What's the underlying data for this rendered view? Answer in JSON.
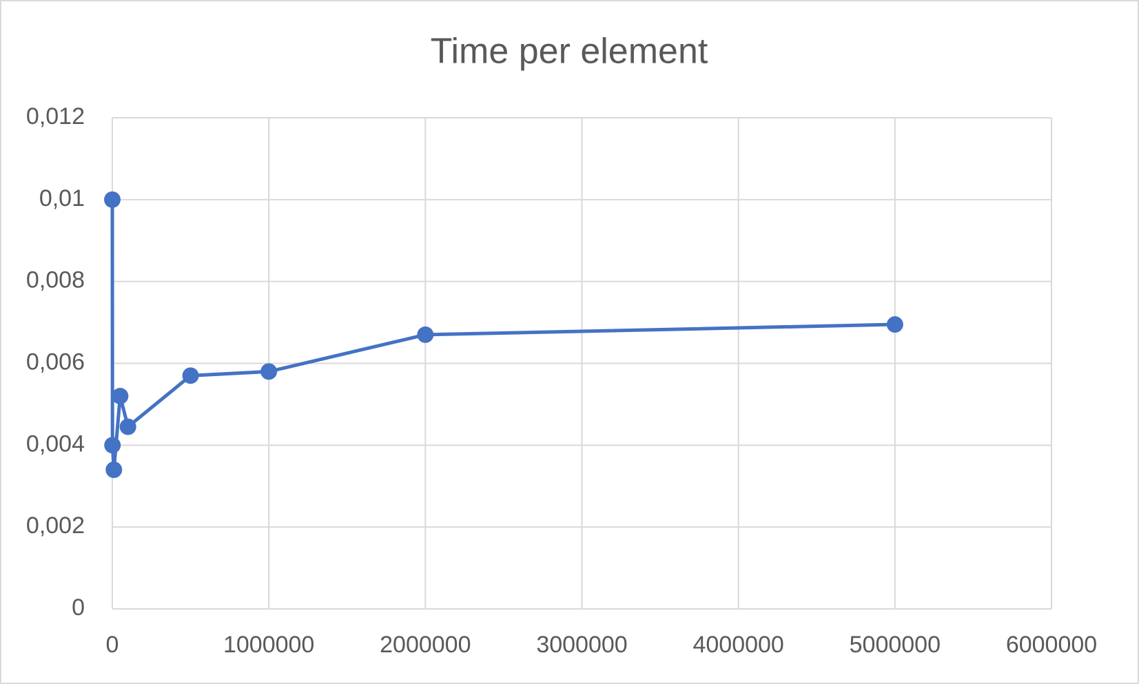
{
  "chart_data": {
    "type": "scatter-line",
    "title": "Time per element",
    "series": [
      {
        "name": "Time per element",
        "color": "#4472c4",
        "x": [
          100,
          1000,
          10000,
          50000,
          100000,
          500000,
          1000000,
          2000000,
          5000000
        ],
        "values": [
          0.01,
          0.004,
          0.0034,
          0.0052,
          0.00445,
          0.0057,
          0.0058,
          0.0067,
          0.00695
        ]
      }
    ],
    "xlim": [
      0,
      6000000
    ],
    "xticks": [
      0,
      1000000,
      2000000,
      3000000,
      4000000,
      5000000,
      6000000
    ],
    "ylim": [
      0,
      0.012
    ],
    "yticks": [
      0,
      {
        "value": 0.002,
        "label": "0,002"
      },
      {
        "value": 0.004,
        "label": "0,004"
      },
      {
        "value": 0.006,
        "label": "0,006"
      },
      {
        "value": 0.008,
        "label": "0,008"
      },
      {
        "value": 0.01,
        "label": "0,01"
      },
      {
        "value": 0.012,
        "label": "0,012"
      }
    ],
    "grid": true
  }
}
